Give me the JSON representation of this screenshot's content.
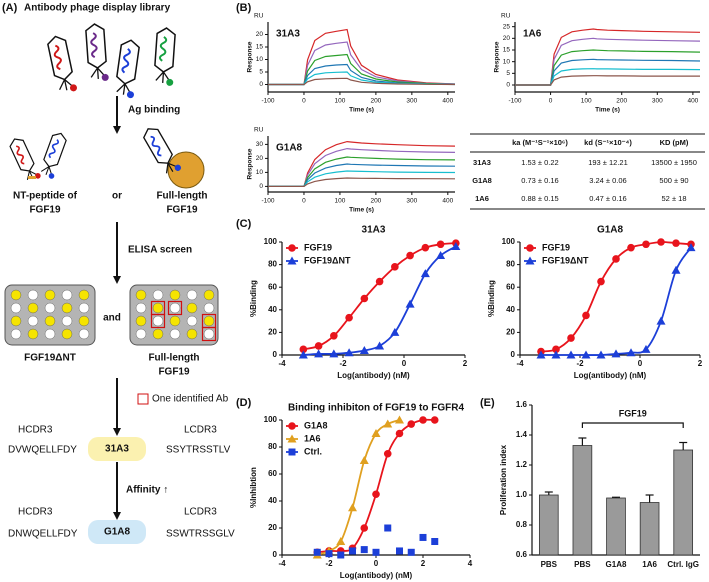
{
  "panels": {
    "a": "(A)",
    "b": "(B)",
    "c": "(C)",
    "d": "(D)",
    "e": "(E)"
  },
  "panel_a": {
    "title": "Antibody phage display library",
    "step1": "Ag binding",
    "left_target": [
      "NT-peptide of",
      "FGF19"
    ],
    "or": "or",
    "right_target": [
      "Full-length",
      "FGF19"
    ],
    "step2": "ELISA screen",
    "left_plate": "FGF19ΔNT",
    "and": "and",
    "right_plate": [
      "Full-length",
      "FGF19"
    ],
    "key": "One identified Ab",
    "ab1": {
      "hcdr_label": "HCDR3",
      "hcdr": "DVWQELLFDY",
      "name": "31A3",
      "lcdr_label": "LCDR3",
      "lcdr": "SSYTRSSTLV"
    },
    "step3": "Affinity ↑",
    "ab2": {
      "hcdr_label": "HCDR3",
      "hcdr": "DNWQELLFDY",
      "name": "G1A8",
      "lcdr_label": "LCDR3",
      "lcdr": "SSWTRSSGLV"
    }
  },
  "table": {
    "header": [
      "ka (M⁻¹S⁻¹×10⁶)",
      "kd (S⁻¹×10⁻⁴)",
      "KD (pM)"
    ],
    "rows": [
      [
        "31A3",
        "1.53 ± 0.22",
        "193 ± 12.21",
        "13500 ± 1950"
      ],
      [
        "G1A8",
        "0.73 ± 0.16",
        "3.24 ± 0.06",
        "500 ± 90"
      ],
      [
        "1A6",
        "0.88 ± 0.15",
        "0.47 ± 0.16",
        "52 ± 18"
      ]
    ]
  },
  "chart_data": [
    {
      "type": "line",
      "title": "31A3",
      "y_unit": "RU",
      "ylabel": "Response",
      "xlabel": "Time (s)",
      "x": [
        -100,
        0,
        10,
        30,
        60,
        90,
        120,
        130,
        160,
        200,
        260,
        340,
        420
      ],
      "xlim": [
        -100,
        420
      ],
      "xticks": [
        -100,
        0,
        100,
        200,
        300,
        400
      ],
      "ylim": [
        -3,
        25
      ],
      "yticks": [
        0,
        5,
        10,
        15,
        20
      ],
      "series": [
        {
          "color": "#d62728",
          "values": [
            0,
            0,
            9.9,
            17.6,
            20.5,
            21.3,
            22,
            15.4,
            7.7,
            4,
            1.8,
            0.7,
            0.2
          ]
        },
        {
          "color": "#9467bd",
          "values": [
            0,
            0,
            7.7,
            13.6,
            15.8,
            16.5,
            17,
            11.9,
            6,
            3.1,
            1.4,
            0.5,
            0.2
          ]
        },
        {
          "color": "#2ca02c",
          "values": [
            0,
            0,
            5.4,
            9.6,
            11.2,
            11.6,
            12,
            8.4,
            4.2,
            2.2,
            1,
            0.4,
            0.1
          ]
        },
        {
          "color": "#1f77b4",
          "values": [
            0,
            0,
            3.6,
            6.4,
            7.4,
            7.8,
            8,
            5.6,
            2.8,
            1.4,
            0.6,
            0.2,
            0.1
          ]
        },
        {
          "color": "#17becf",
          "values": [
            0,
            0,
            2.3,
            4,
            4.7,
            4.9,
            5,
            3.5,
            1.8,
            0.9,
            0.4,
            0.2,
            0
          ]
        },
        {
          "color": "#8c564b",
          "values": [
            0,
            0,
            1.1,
            2,
            2.3,
            2.4,
            2.5,
            1.8,
            0.9,
            0.5,
            0.2,
            0.1,
            0
          ]
        }
      ]
    },
    {
      "type": "line",
      "title": "1A6",
      "y_unit": "RU",
      "ylabel": "Response",
      "xlabel": "Time (s)",
      "x": [
        -100,
        0,
        10,
        30,
        60,
        90,
        120,
        130,
        160,
        200,
        260,
        340,
        420
      ],
      "xlim": [
        -100,
        420
      ],
      "xticks": [
        -100,
        0,
        100,
        200,
        300,
        400
      ],
      "ylim": [
        -3,
        27
      ],
      "yticks": [
        0,
        5,
        10,
        15,
        20,
        25
      ],
      "series": [
        {
          "color": "#d62728",
          "values": [
            0,
            0,
            13.2,
            20.4,
            22.8,
            23.5,
            24,
            23.8,
            23.5,
            23.3,
            23,
            22.8,
            22.6
          ]
        },
        {
          "color": "#9467bd",
          "values": [
            0,
            0,
            11,
            17,
            19,
            19.6,
            20,
            19.8,
            19.6,
            19.4,
            19.2,
            19,
            18.8
          ]
        },
        {
          "color": "#2ca02c",
          "values": [
            0,
            0,
            8.3,
            12.8,
            14.3,
            14.7,
            15,
            14.9,
            14.7,
            14.6,
            14.4,
            14.3,
            14.1
          ]
        },
        {
          "color": "#1f77b4",
          "values": [
            0,
            0,
            6.1,
            9.4,
            10.5,
            10.8,
            11,
            10.9,
            10.8,
            10.7,
            10.6,
            10.5,
            10.3
          ]
        },
        {
          "color": "#17becf",
          "values": [
            0,
            0,
            3.9,
            6,
            6.7,
            6.9,
            7,
            6.9,
            6.9,
            6.8,
            6.7,
            6.7,
            6.6
          ]
        },
        {
          "color": "#8c564b",
          "values": [
            0,
            0,
            2.2,
            3.4,
            3.8,
            3.9,
            4,
            4,
            3.9,
            3.9,
            3.8,
            3.8,
            3.8
          ]
        }
      ]
    },
    {
      "type": "line",
      "title": "G1A8",
      "y_unit": "RU",
      "ylabel": "Response",
      "xlabel": "Time (s)",
      "x": [
        -100,
        0,
        10,
        30,
        60,
        90,
        120,
        130,
        160,
        200,
        260,
        340,
        420
      ],
      "xlim": [
        -100,
        420
      ],
      "xticks": [
        -100,
        0,
        100,
        200,
        300,
        400
      ],
      "ylim": [
        -4,
        36
      ],
      "yticks": [
        0,
        10,
        20,
        30
      ],
      "series": [
        {
          "color": "#d62728",
          "values": [
            0,
            0,
            9.6,
            19.2,
            26.2,
            29.8,
            32,
            31.7,
            31,
            30.4,
            29.8,
            29.1,
            28.8
          ]
        },
        {
          "color": "#9467bd",
          "values": [
            0,
            0,
            8.1,
            16.2,
            22.1,
            25.1,
            27,
            26.7,
            26.2,
            25.7,
            25.1,
            24.6,
            24.3
          ]
        },
        {
          "color": "#2ca02c",
          "values": [
            0,
            0,
            6.3,
            12.6,
            17.2,
            19.5,
            21,
            20.8,
            20.4,
            20,
            19.5,
            19.1,
            18.9
          ]
        },
        {
          "color": "#1f77b4",
          "values": [
            0,
            0,
            4.8,
            9.6,
            13.1,
            14.9,
            16,
            15.8,
            15.5,
            15.2,
            14.9,
            14.6,
            14.4
          ]
        },
        {
          "color": "#17becf",
          "values": [
            0,
            0,
            3.3,
            6.6,
            9,
            10.2,
            11,
            10.9,
            10.7,
            10.5,
            10.2,
            10,
            9.9
          ]
        },
        {
          "color": "#8c564b",
          "values": [
            0,
            0,
            1.8,
            3.6,
            4.9,
            5.6,
            6,
            5.9,
            5.8,
            5.7,
            5.6,
            5.5,
            5.4
          ]
        }
      ]
    },
    {
      "type": "scatter",
      "title": "31A3",
      "ylabel": "%Binding",
      "xlabel": "Log(antibody) (nM)",
      "x": [
        -3.3,
        -2.8,
        -2.3,
        -1.8,
        -1.3,
        -0.8,
        -0.3,
        0.2,
        0.7,
        1.2,
        1.7
      ],
      "xlim": [
        -4,
        2
      ],
      "xticks": [
        -4,
        -2,
        0,
        2
      ],
      "ylim": [
        0,
        100
      ],
      "yticks": [
        0,
        20,
        40,
        60,
        80,
        100
      ],
      "legend": "upper left",
      "series": [
        {
          "name": "FGF19",
          "color": "#e8141c",
          "marker": "circle",
          "curve": true,
          "values": [
            5,
            8,
            17,
            33,
            50,
            65,
            78,
            88,
            95,
            98,
            99
          ]
        },
        {
          "name": "FGF19ΔNT",
          "color": "#1c3fd8",
          "marker": "triangle",
          "curve": true,
          "values": [
            0,
            1,
            1,
            2,
            4,
            8,
            20,
            45,
            72,
            88,
            96
          ]
        }
      ]
    },
    {
      "type": "scatter",
      "title": "G1A8",
      "ylabel": "%Binding",
      "xlabel": "Log(antibody) (nM)",
      "x": [
        -3.3,
        -2.8,
        -2.3,
        -1.8,
        -1.3,
        -0.8,
        -0.3,
        0.2,
        0.7,
        1.2,
        1.7
      ],
      "xlim": [
        -4,
        2
      ],
      "xticks": [
        -4,
        -2,
        0,
        2
      ],
      "ylim": [
        0,
        100
      ],
      "yticks": [
        0,
        20,
        40,
        60,
        80,
        100
      ],
      "legend": "upper left",
      "series": [
        {
          "name": "FGF19",
          "color": "#e8141c",
          "marker": "circle",
          "curve": true,
          "values": [
            3,
            5,
            15,
            35,
            65,
            85,
            95,
            98,
            100,
            99,
            98
          ]
        },
        {
          "name": "FGF19ΔNT",
          "color": "#1c3fd8",
          "marker": "triangle",
          "curve": true,
          "values": [
            0,
            0,
            0,
            0,
            0,
            1,
            2,
            5,
            30,
            75,
            95
          ]
        }
      ]
    },
    {
      "type": "scatter",
      "title": "Binding inhibiton of FGF19 to FGFR4",
      "ylabel": "%Inhibtion",
      "xlabel": "Log(antibody) (nM)",
      "x": [
        -2.5,
        -2,
        -1.5,
        -1,
        -0.5,
        0,
        0.5,
        1,
        1.5,
        2,
        2.5
      ],
      "xlim": [
        -4,
        4
      ],
      "xticks": [
        -4,
        -2,
        0,
        2,
        4
      ],
      "ylim": [
        0,
        100
      ],
      "yticks": [
        0,
        20,
        40,
        60,
        80,
        100
      ],
      "legend": "upper left",
      "series": [
        {
          "name": "G1A8",
          "color": "#e8141c",
          "marker": "circle",
          "curve": true,
          "values": [
            2,
            3,
            3,
            5,
            20,
            45,
            75,
            90,
            97,
            100,
            100
          ]
        },
        {
          "name": "1A6",
          "color": "#e0a020",
          "marker": "triangle",
          "curve": true,
          "values": [
            0,
            3,
            10,
            35,
            70,
            90,
            97,
            100,
            null,
            null,
            null
          ]
        },
        {
          "name": "Ctrl.",
          "color": "#1c3fd8",
          "marker": "square",
          "curve": false,
          "values": [
            2,
            1,
            0,
            3,
            4,
            2,
            20,
            3,
            2,
            13,
            10
          ]
        }
      ]
    },
    {
      "type": "bar",
      "ylabel": "Proliferation index",
      "annotation": "FGF19",
      "categories": [
        "PBS",
        "PBS",
        "G1A8",
        "1A6",
        "Ctrl. IgG"
      ],
      "values": [
        1.0,
        1.33,
        0.98,
        0.95,
        1.3
      ],
      "errors": [
        0.02,
        0.05,
        0.005,
        0.05,
        0.05
      ],
      "color": "#9a9a9a",
      "ylim": [
        0.6,
        1.6
      ],
      "yticks": [
        0.6,
        0.8,
        {
          "value": 1,
          "label": "1.0"
        },
        1.2,
        1.4,
        1.6
      ]
    }
  ]
}
